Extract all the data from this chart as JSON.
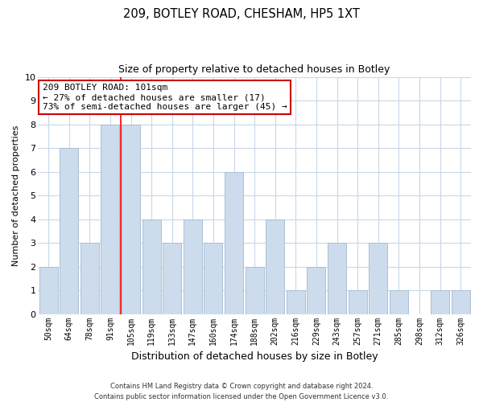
{
  "title": "209, BOTLEY ROAD, CHESHAM, HP5 1XT",
  "subtitle": "Size of property relative to detached houses in Botley",
  "xlabel": "Distribution of detached houses by size in Botley",
  "ylabel": "Number of detached properties",
  "bins": [
    "50sqm",
    "64sqm",
    "78sqm",
    "91sqm",
    "105sqm",
    "119sqm",
    "133sqm",
    "147sqm",
    "160sqm",
    "174sqm",
    "188sqm",
    "202sqm",
    "216sqm",
    "229sqm",
    "243sqm",
    "257sqm",
    "271sqm",
    "285sqm",
    "298sqm",
    "312sqm",
    "326sqm"
  ],
  "counts": [
    2,
    7,
    3,
    8,
    8,
    4,
    3,
    4,
    3,
    6,
    2,
    4,
    1,
    2,
    3,
    1,
    3,
    1,
    0,
    1,
    1
  ],
  "bar_color": "#ccdcec",
  "bar_edge_color": "#aac0d8",
  "red_line_x": 3.5,
  "annotation_line1": "209 BOTLEY ROAD: 101sqm",
  "annotation_line2": "← 27% of detached houses are smaller (17)",
  "annotation_line3": "73% of semi-detached houses are larger (45) →",
  "annotation_box_color": "#ffffff",
  "annotation_box_edge_color": "#cc0000",
  "ylim": [
    0,
    10
  ],
  "yticks": [
    0,
    1,
    2,
    3,
    4,
    5,
    6,
    7,
    8,
    9,
    10
  ],
  "footer_line1": "Contains HM Land Registry data © Crown copyright and database right 2024.",
  "footer_line2": "Contains public sector information licensed under the Open Government Licence v3.0.",
  "background_color": "#ffffff",
  "grid_color": "#c8d8e8",
  "title_fontsize": 10.5,
  "subtitle_fontsize": 9,
  "ylabel_fontsize": 8,
  "xlabel_fontsize": 9,
  "tick_fontsize": 8,
  "xtick_fontsize": 7,
  "annotation_fontsize": 8
}
